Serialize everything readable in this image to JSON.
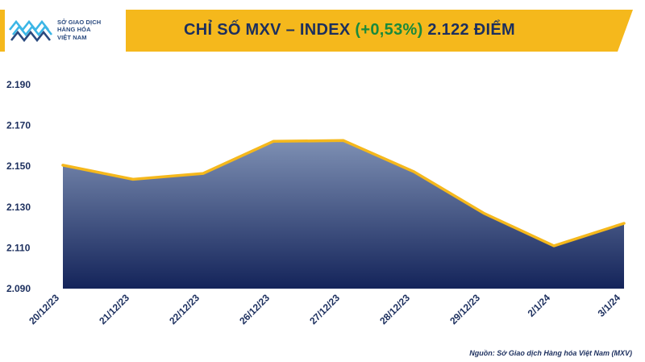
{
  "header": {
    "logo_lines": [
      "SỞ GIAO DỊCH",
      "HÀNG HÓA",
      "VIỆT NAM"
    ],
    "title_prefix": "CHỈ SỐ MXV – INDEX",
    "title_change": "(+0,53%)",
    "title_value": "2.122 ĐIỂM"
  },
  "source": "Nguồn: Sở Giao dịch Hàng hóa Việt Nam (MXV)",
  "colors": {
    "band": "#f5b81c",
    "line": "#f5b81c",
    "fill_top": "#7d8fb3",
    "fill_bottom": "#14245a",
    "change_text": "#1a8a3c"
  },
  "chart_data": {
    "type": "area",
    "categories": [
      "20/12/23",
      "21/12/23",
      "22/12/23",
      "26/12/23",
      "27/12/23",
      "28/12/23",
      "29/12/23",
      "2/1/24",
      "3/1/24"
    ],
    "series": [
      {
        "values": [
          2150.5,
          2143.6,
          2146.5,
          2162.2,
          2162.6,
          2147.4,
          2127.0,
          2111.0,
          2122.0
        ]
      }
    ],
    "y_ticks": [
      "2.190",
      "2.170",
      "2.150",
      "2.130",
      "2.110",
      "2.090"
    ],
    "ylim": [
      2090,
      2190
    ],
    "grid": false,
    "legend": "none"
  }
}
